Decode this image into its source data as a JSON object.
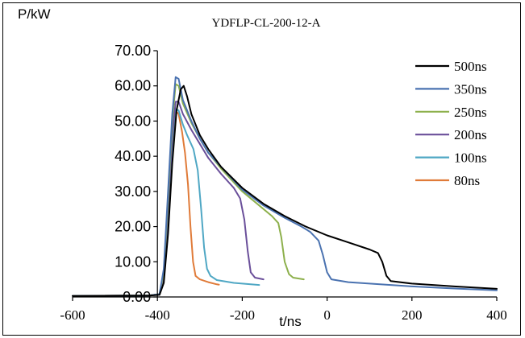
{
  "chart_data": {
    "type": "line",
    "title": "YDFLP-CL-200-12-A",
    "xlabel": "t/ns",
    "ylabel": "P/kW",
    "xlim": [
      -600,
      400
    ],
    "ylim": [
      0,
      70
    ],
    "xticks": [
      "-600",
      "-400",
      "-200",
      "0",
      "200",
      "400"
    ],
    "yticks": [
      "0.00",
      "10.00",
      "20.00",
      "30.00",
      "40.00",
      "50.00",
      "60.00",
      "70.00"
    ],
    "grid": false,
    "legend": "top-right",
    "series": [
      {
        "name": "500ns",
        "color": "#000000",
        "points": [
          [
            -600,
            0.3
          ],
          [
            -420,
            0.4
          ],
          [
            -395,
            0.6
          ],
          [
            -385,
            4
          ],
          [
            -375,
            18
          ],
          [
            -365,
            38
          ],
          [
            -355,
            53
          ],
          [
            -345,
            59
          ],
          [
            -338,
            60
          ],
          [
            -330,
            57
          ],
          [
            -320,
            52
          ],
          [
            -300,
            46
          ],
          [
            -280,
            42
          ],
          [
            -250,
            37
          ],
          [
            -200,
            31
          ],
          [
            -150,
            26.5
          ],
          [
            -100,
            23
          ],
          [
            -50,
            20
          ],
          [
            0,
            17.5
          ],
          [
            50,
            15.5
          ],
          [
            100,
            13.5
          ],
          [
            120,
            12.5
          ],
          [
            130,
            10
          ],
          [
            140,
            6
          ],
          [
            150,
            4.5
          ],
          [
            200,
            3.8
          ],
          [
            300,
            3
          ],
          [
            400,
            2.3
          ]
        ]
      },
      {
        "name": "350ns",
        "color": "#4a72b0",
        "points": [
          [
            -600,
            0.3
          ],
          [
            -420,
            0.4
          ],
          [
            -395,
            0.8
          ],
          [
            -385,
            8
          ],
          [
            -375,
            30
          ],
          [
            -365,
            52
          ],
          [
            -357,
            62.5
          ],
          [
            -350,
            62
          ],
          [
            -340,
            56
          ],
          [
            -320,
            50
          ],
          [
            -300,
            45
          ],
          [
            -280,
            41
          ],
          [
            -250,
            37
          ],
          [
            -200,
            30.5
          ],
          [
            -150,
            26
          ],
          [
            -100,
            22.5
          ],
          [
            -60,
            20
          ],
          [
            -40,
            18.5
          ],
          [
            -20,
            16
          ],
          [
            -10,
            12
          ],
          [
            0,
            7
          ],
          [
            10,
            5
          ],
          [
            50,
            4.2
          ],
          [
            100,
            3.8
          ],
          [
            200,
            3
          ],
          [
            300,
            2.4
          ],
          [
            400,
            1.9
          ]
        ]
      },
      {
        "name": "250ns",
        "color": "#8db04c",
        "points": [
          [
            -600,
            0.3
          ],
          [
            -420,
            0.4
          ],
          [
            -395,
            0.8
          ],
          [
            -385,
            7
          ],
          [
            -375,
            28
          ],
          [
            -365,
            50
          ],
          [
            -357,
            60.5
          ],
          [
            -350,
            60
          ],
          [
            -340,
            55
          ],
          [
            -320,
            49.5
          ],
          [
            -300,
            45
          ],
          [
            -280,
            41
          ],
          [
            -250,
            36.5
          ],
          [
            -200,
            30
          ],
          [
            -160,
            26
          ],
          [
            -130,
            23
          ],
          [
            -115,
            21
          ],
          [
            -108,
            17
          ],
          [
            -100,
            10
          ],
          [
            -90,
            6.5
          ],
          [
            -80,
            5.5
          ],
          [
            -55,
            5
          ]
        ]
      },
      {
        "name": "200ns",
        "color": "#6a4f9a",
        "points": [
          [
            -600,
            0.3
          ],
          [
            -420,
            0.4
          ],
          [
            -395,
            0.8
          ],
          [
            -385,
            6
          ],
          [
            -375,
            26
          ],
          [
            -365,
            46
          ],
          [
            -357,
            55.5
          ],
          [
            -350,
            55.5
          ],
          [
            -340,
            52
          ],
          [
            -320,
            47.5
          ],
          [
            -300,
            43.5
          ],
          [
            -280,
            39.5
          ],
          [
            -250,
            35
          ],
          [
            -220,
            31
          ],
          [
            -205,
            28
          ],
          [
            -195,
            22
          ],
          [
            -187,
            13
          ],
          [
            -180,
            7
          ],
          [
            -170,
            5.5
          ],
          [
            -150,
            5
          ]
        ]
      },
      {
        "name": "100ns",
        "color": "#4fa7c4",
        "points": [
          [
            -600,
            0.3
          ],
          [
            -420,
            0.4
          ],
          [
            -395,
            0.8
          ],
          [
            -385,
            6
          ],
          [
            -375,
            24
          ],
          [
            -365,
            44
          ],
          [
            -358,
            53.5
          ],
          [
            -350,
            53
          ],
          [
            -340,
            49
          ],
          [
            -330,
            46
          ],
          [
            -315,
            42
          ],
          [
            -305,
            36
          ],
          [
            -297,
            25
          ],
          [
            -290,
            14
          ],
          [
            -283,
            8
          ],
          [
            -275,
            6
          ],
          [
            -260,
            4.8
          ],
          [
            -220,
            4
          ],
          [
            -180,
            3.6
          ],
          [
            -160,
            3.4
          ]
        ]
      },
      {
        "name": "80ns",
        "color": "#e07b39",
        "points": [
          [
            -600,
            0.3
          ],
          [
            -420,
            0.4
          ],
          [
            -395,
            0.8
          ],
          [
            -385,
            5
          ],
          [
            -375,
            22
          ],
          [
            -365,
            42
          ],
          [
            -358,
            53
          ],
          [
            -350,
            52
          ],
          [
            -342,
            47
          ],
          [
            -335,
            41
          ],
          [
            -328,
            32
          ],
          [
            -322,
            20
          ],
          [
            -316,
            10
          ],
          [
            -310,
            6
          ],
          [
            -300,
            5
          ],
          [
            -280,
            4.2
          ],
          [
            -260,
            3.6
          ],
          [
            -255,
            3.5
          ]
        ]
      }
    ]
  }
}
